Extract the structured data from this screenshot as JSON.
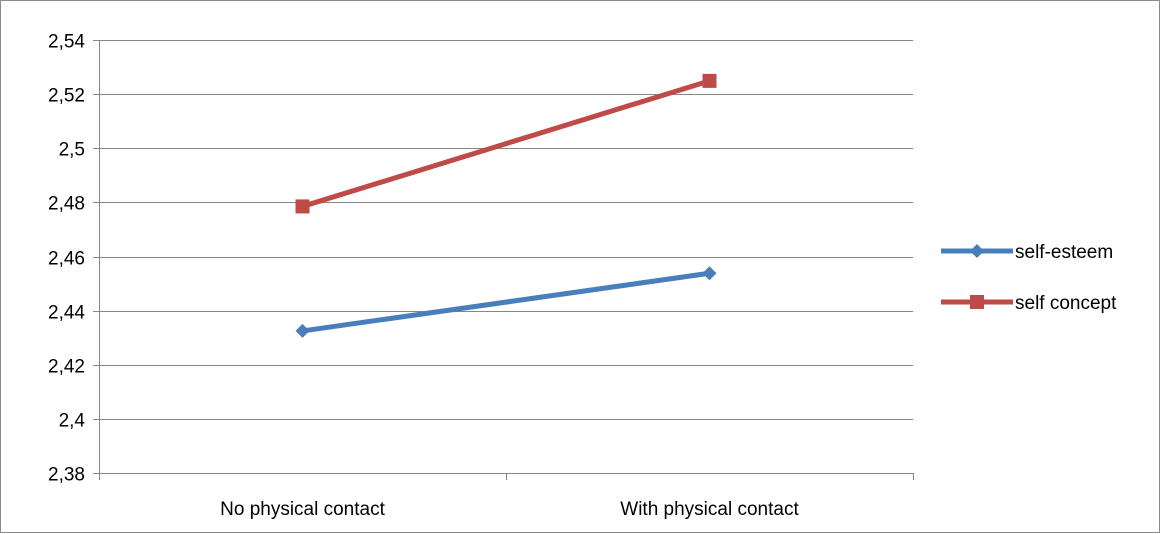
{
  "chart_data": {
    "type": "line",
    "categories": [
      "No physical contact",
      "With physical contact"
    ],
    "series": [
      {
        "name": "self-esteem",
        "values": [
          2.4325,
          2.4538
        ],
        "color": "#4a7ebb",
        "marker": "diamond"
      },
      {
        "name": "self concept",
        "values": [
          2.4785,
          2.5249
        ],
        "color": "#be4b48",
        "marker": "square"
      }
    ],
    "ylim": [
      2.38,
      2.54
    ],
    "yticks": [
      "2,38",
      "2,4",
      "2,42",
      "2,44",
      "2,46",
      "2,48",
      "2,5",
      "2,52",
      "2,54"
    ],
    "ytick_values": [
      2.38,
      2.4,
      2.42,
      2.44,
      2.46,
      2.48,
      2.5,
      2.52,
      2.54
    ],
    "grid": true,
    "legend_position": "right",
    "title": "",
    "xlabel": "",
    "ylabel": "",
    "gridline_color": "#878787",
    "axis_color": "#878787"
  }
}
